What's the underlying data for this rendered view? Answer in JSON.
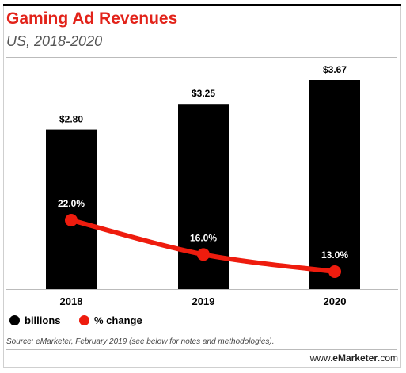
{
  "header": {
    "title": "Gaming Ad Revenues",
    "subtitle": "US, 2018-2020"
  },
  "chart_data": {
    "type": "bar",
    "title": "Gaming Ad Revenues",
    "subtitle": "US, 2018-2020",
    "categories": [
      "2018",
      "2019",
      "2020"
    ],
    "series": [
      {
        "name": "billions",
        "type": "bar",
        "values": [
          2.8,
          3.25,
          3.67
        ],
        "labels": [
          "$2.80",
          "$3.25",
          "$3.67"
        ],
        "color": "#000000"
      },
      {
        "name": "% change",
        "type": "line",
        "values": [
          22.0,
          16.0,
          13.0
        ],
        "labels": [
          "22.0%",
          "16.0%",
          "13.0%"
        ],
        "color": "#ee1c0e"
      }
    ],
    "ylim": [
      0,
      3.67
    ],
    "grid": false,
    "legend_position": "bottom-left"
  },
  "legend": {
    "items": [
      {
        "label": "billions",
        "color": "#000000"
      },
      {
        "label": "% change",
        "color": "#ee1c0e"
      }
    ]
  },
  "footer": {
    "source": "Source: eMarketer, February 2019 (see below for notes and methodologies).",
    "brand_prefix": "www.",
    "brand_name": "eMarketer",
    "brand_suffix": ".com"
  },
  "colors": {
    "accent": "#e2231a",
    "bar": "#000000",
    "line": "#ee1c0e"
  }
}
